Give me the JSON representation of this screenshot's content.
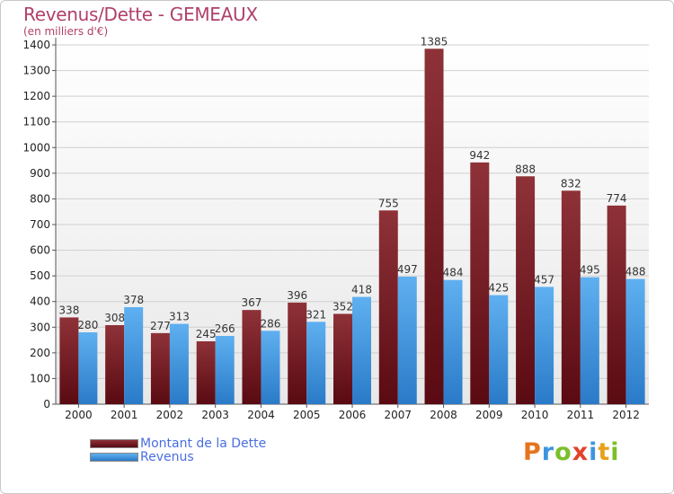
{
  "chart_data": {
    "type": "bar",
    "title": "Revenus/Dette - GEMEAUX",
    "subtitle": "(en milliers d'€)",
    "categories": [
      "2000",
      "2001",
      "2002",
      "2003",
      "2004",
      "2005",
      "2006",
      "2007",
      "2008",
      "2009",
      "2010",
      "2011",
      "2012"
    ],
    "series": [
      {
        "name": "Montant de la Dette",
        "color": "#7a1a22",
        "values": [
          338,
          308,
          277,
          245,
          367,
          396,
          352,
          755,
          1385,
          942,
          888,
          832,
          774
        ]
      },
      {
        "name": "Revenus",
        "color": "#3d95e0",
        "values": [
          280,
          378,
          313,
          266,
          286,
          321,
          418,
          497,
          484,
          425,
          457,
          495,
          488
        ]
      }
    ],
    "ylim": [
      0,
      1400
    ],
    "yticks": [
      0,
      100,
      200,
      300,
      400,
      500,
      600,
      700,
      800,
      900,
      1000,
      1100,
      1200,
      1300,
      1400
    ],
    "grid": true,
    "legend": "bottom-left"
  },
  "brand": {
    "letters": [
      "P",
      "r",
      "o",
      "x",
      "i",
      "t",
      "i"
    ],
    "colors": [
      "#e8731c",
      "#3d95e0",
      "#7bbf2a",
      "#e3412a",
      "#3d95e0",
      "#e8a11c",
      "#7bbf2a"
    ]
  }
}
